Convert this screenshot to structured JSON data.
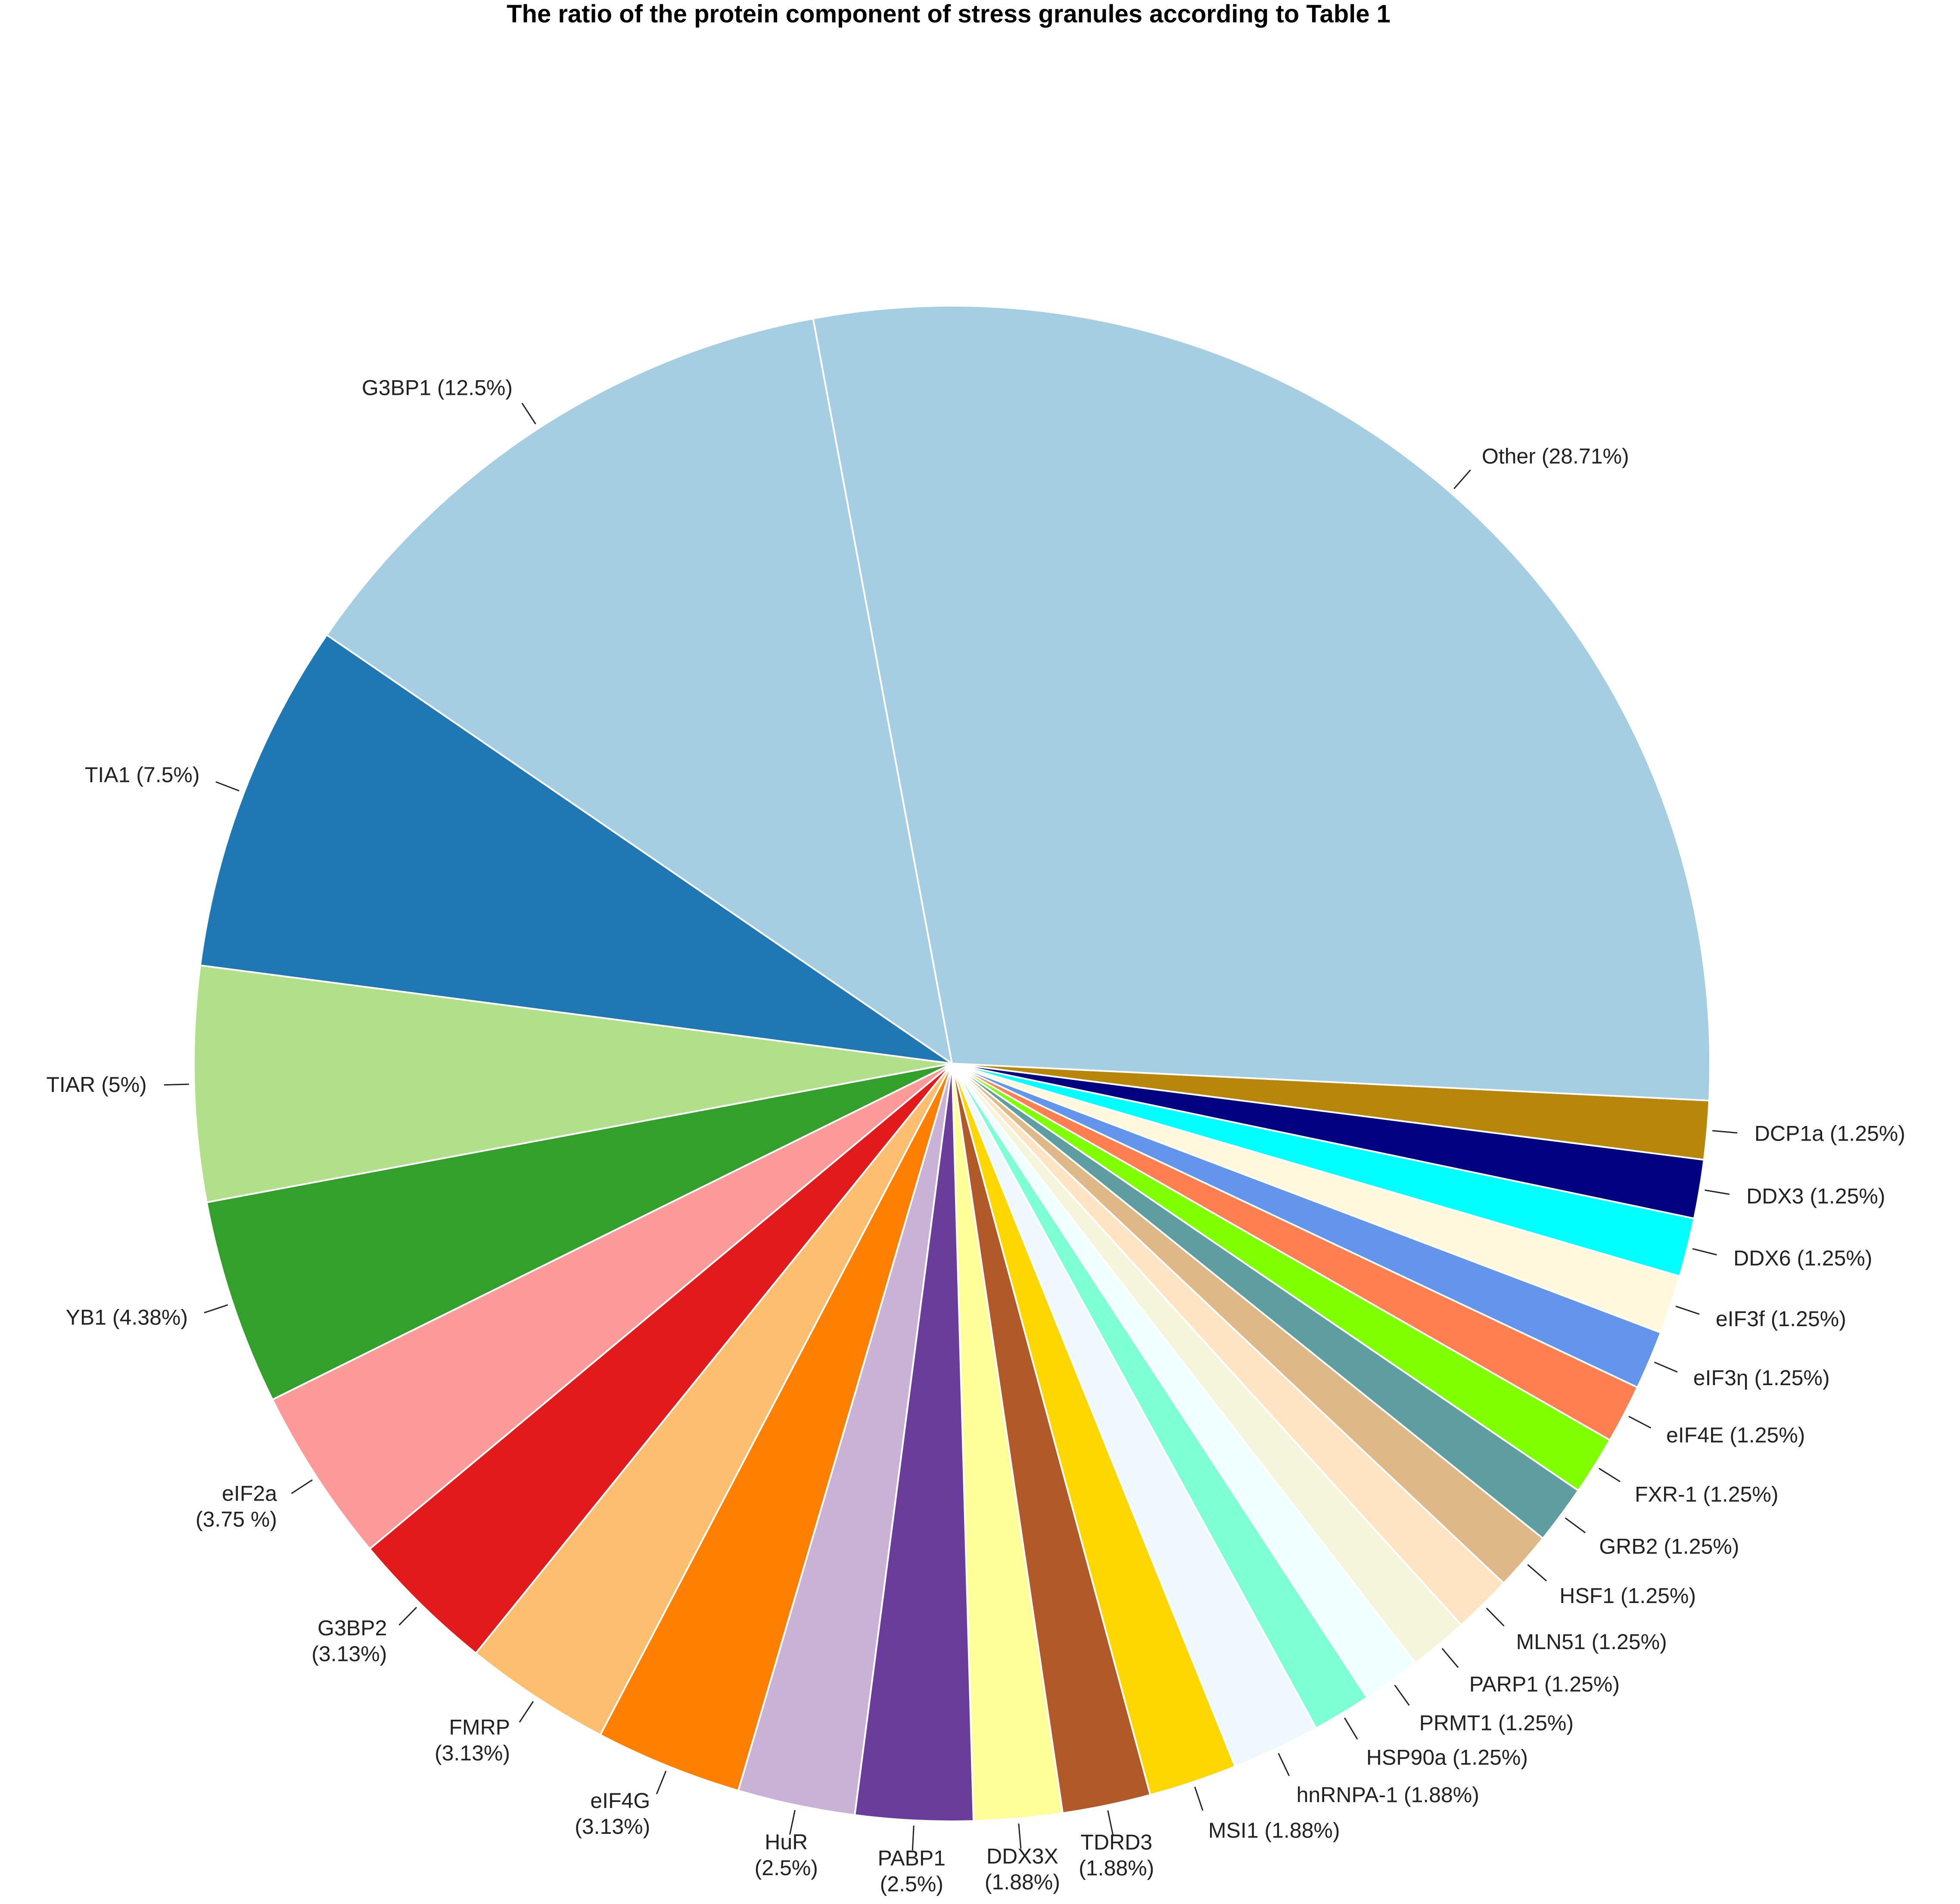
{
  "chart_data": {
    "type": "pie",
    "title": "The ratio of the protein component of stress granules according to Table 1",
    "start_angle_deg": 2.8,
    "direction": "clockwise-from-east",
    "slices": [
      {
        "label": "DCP1a (1.25%)",
        "value": 1.25,
        "color": "#B8860B"
      },
      {
        "label": "DDX3 (1.25%)",
        "value": 1.25,
        "color": "#000080"
      },
      {
        "label": "DDX6 (1.25%)",
        "value": 1.25,
        "color": "#00FFFF"
      },
      {
        "label": "eIF3f (1.25%)",
        "value": 1.25,
        "color": "#FFF8DC"
      },
      {
        "label": "eIF3η (1.25%)",
        "value": 1.25,
        "color": "#6495ED"
      },
      {
        "label": "eIF4E (1.25%)",
        "value": 1.25,
        "color": "#FF7F50"
      },
      {
        "label": "FXR-1 (1.25%)",
        "value": 1.25,
        "color": "#7FFF00"
      },
      {
        "label": "GRB2 (1.25%)",
        "value": 1.25,
        "color": "#5F9EA0"
      },
      {
        "label": "HSF1 (1.25%)",
        "value": 1.25,
        "color": "#DEB887"
      },
      {
        "label": "MLN51 (1.25%)",
        "value": 1.25,
        "color": "#FFE4C4"
      },
      {
        "label": "PARP1 (1.25%)",
        "value": 1.25,
        "color": "#F5F5DC"
      },
      {
        "label": "PRMT1 (1.25%)",
        "value": 1.25,
        "color": "#F0FFFF"
      },
      {
        "label": "HSP90a (1.25%)",
        "value": 1.25,
        "color": "#7FFFD4"
      },
      {
        "label": "hnRNPA-1 (1.88%)",
        "value": 1.88,
        "color": "#F0F8FF"
      },
      {
        "label": "MSI1 (1.88%)",
        "value": 1.88,
        "color": "#FFD700"
      },
      {
        "label": "TDRD3\n(1.88%)",
        "value": 1.88,
        "color": "#B15928"
      },
      {
        "label": "DDX3X\n(1.88%)",
        "value": 1.88,
        "color": "#FFFF99"
      },
      {
        "label": "PABP1\n(2.5%)",
        "value": 2.5,
        "color": "#6A3D9A"
      },
      {
        "label": "HuR\n(2.5%)",
        "value": 2.5,
        "color": "#CAB2D6"
      },
      {
        "label": "eIF4G\n(3.13%)",
        "value": 3.13,
        "color": "#FF7F00"
      },
      {
        "label": "FMRP\n(3.13%)",
        "value": 3.13,
        "color": "#FDBF6F"
      },
      {
        "label": "G3BP2\n(3.13%)",
        "value": 3.13,
        "color": "#E31A1C"
      },
      {
        "label": "eIF2a\n(3.75 %)",
        "value": 3.75,
        "color": "#FB9A99"
      },
      {
        "label": "YB1 (4.38%)",
        "value": 4.38,
        "color": "#33A02C"
      },
      {
        "label": "TIAR (5%)",
        "value": 5.0,
        "color": "#B2DF8A"
      },
      {
        "label": "TIA1 (7.5%)",
        "value": 7.5,
        "color": "#1F78B4"
      },
      {
        "label": "G3BP1 (12.5%)",
        "value": 12.5,
        "color": "#A6CEE3"
      },
      {
        "label": "Other (28.71%)",
        "value": 28.71,
        "color": null
      }
    ],
    "legend": "none",
    "grid": false
  }
}
